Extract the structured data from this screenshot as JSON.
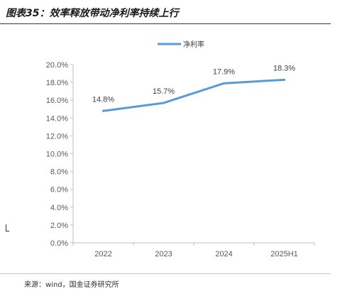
{
  "header": {
    "title": "图表35：效率释放带动净利率持续上行"
  },
  "footer": {
    "source": "来源：wind，国金证券研究所"
  },
  "colors": {
    "series": "#5b9bd5",
    "axis": "#bfbfbf",
    "text": "#595959"
  },
  "chart_data": {
    "type": "line",
    "categories": [
      "2022",
      "2023",
      "2024",
      "2025H1"
    ],
    "series": [
      {
        "name": "净利率",
        "values": [
          14.8,
          15.7,
          17.9,
          18.3
        ],
        "labels": [
          "14.8%",
          "15.7%",
          "17.9%",
          "18.3%"
        ]
      }
    ],
    "yticks": [
      "0.0%",
      "2.0%",
      "4.0%",
      "6.0%",
      "8.0%",
      "10.0%",
      "12.0%",
      "14.0%",
      "16.0%",
      "18.0%",
      "20.0%"
    ],
    "ylim": [
      0,
      20
    ],
    "grid": false,
    "legend": "top"
  }
}
